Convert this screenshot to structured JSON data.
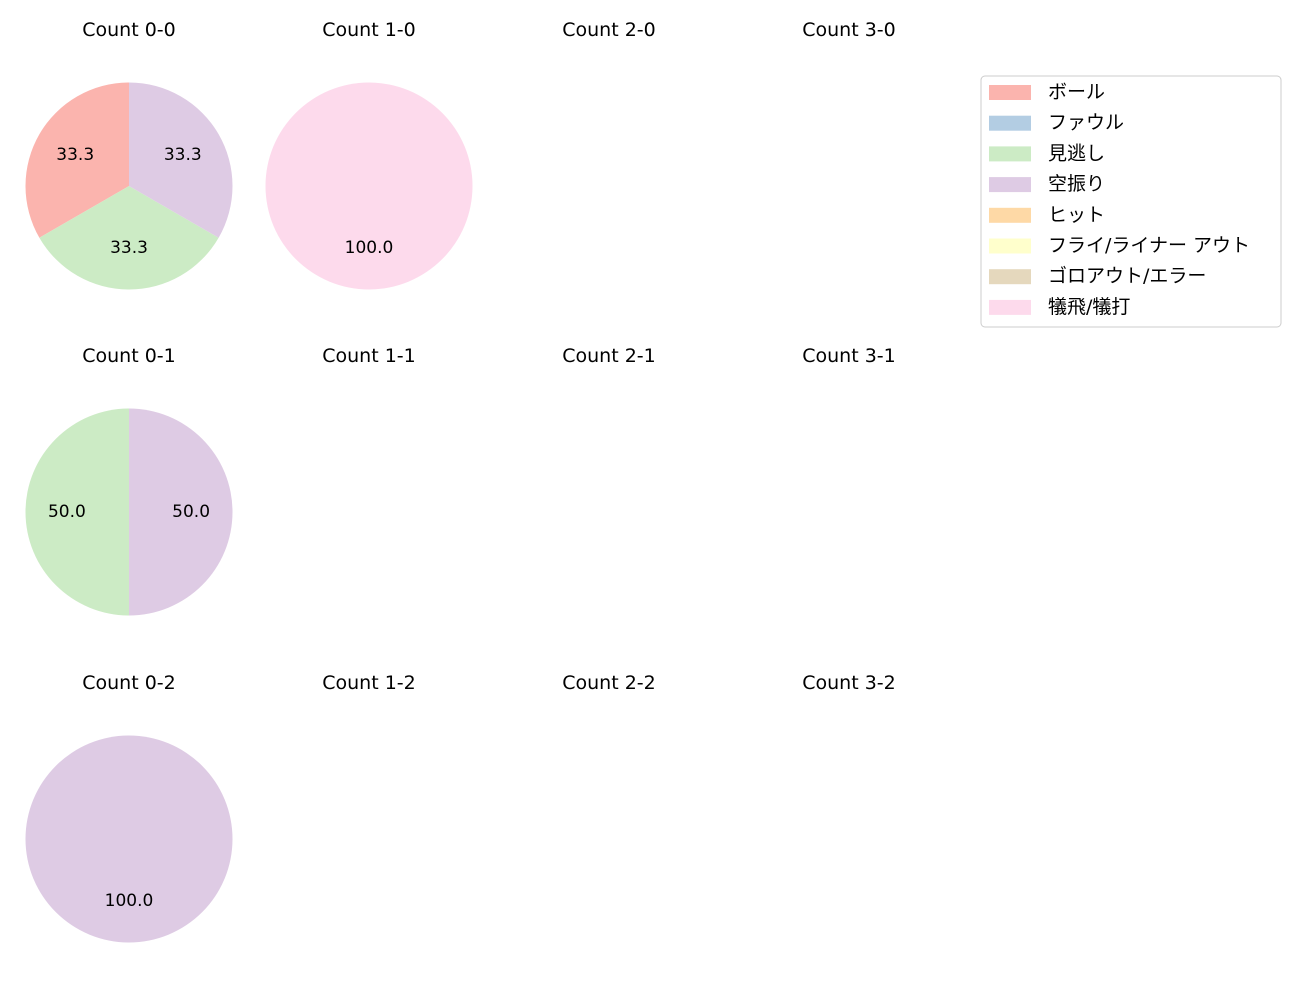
{
  "chart_data": [
    {
      "type": "pie",
      "title": "Count 0-0",
      "slices": [
        {
          "category": "ボール",
          "value": 33.3
        },
        {
          "category": "見逃し",
          "value": 33.3
        },
        {
          "category": "空振り",
          "value": 33.3
        }
      ]
    },
    {
      "type": "pie",
      "title": "Count 1-0",
      "slices": [
        {
          "category": "犠飛/犠打",
          "value": 100.0
        }
      ]
    },
    {
      "type": "pie",
      "title": "Count 2-0",
      "slices": []
    },
    {
      "type": "pie",
      "title": "Count 3-0",
      "slices": []
    },
    {
      "type": "pie",
      "title": "Count 0-1",
      "slices": [
        {
          "category": "見逃し",
          "value": 50.0
        },
        {
          "category": "空振り",
          "value": 50.0
        }
      ]
    },
    {
      "type": "pie",
      "title": "Count 1-1",
      "slices": []
    },
    {
      "type": "pie",
      "title": "Count 2-1",
      "slices": []
    },
    {
      "type": "pie",
      "title": "Count 3-1",
      "slices": []
    },
    {
      "type": "pie",
      "title": "Count 0-2",
      "slices": [
        {
          "category": "空振り",
          "value": 100.0
        }
      ]
    },
    {
      "type": "pie",
      "title": "Count 1-2",
      "slices": []
    },
    {
      "type": "pie",
      "title": "Count 2-2",
      "slices": []
    },
    {
      "type": "pie",
      "title": "Count 3-2",
      "slices": []
    }
  ],
  "legend": {
    "placement": "top-right",
    "items": [
      {
        "label": "ボール",
        "color": "#fbb4ae"
      },
      {
        "label": "ファウル",
        "color": "#b3cde3"
      },
      {
        "label": "見逃し",
        "color": "#ccebc5"
      },
      {
        "label": "空振り",
        "color": "#decbe4"
      },
      {
        "label": "ヒット",
        "color": "#fed9a6"
      },
      {
        "label": "フライ/ライナー アウト",
        "color": "#ffffcc"
      },
      {
        "label": "ゴロアウト/エラー",
        "color": "#e5d8bd"
      },
      {
        "label": "犠飛/犠打",
        "color": "#fddaec"
      }
    ]
  }
}
